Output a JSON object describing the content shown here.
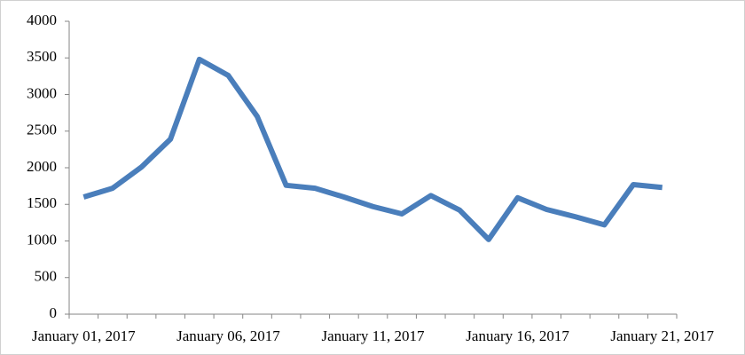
{
  "chart_data": {
    "type": "line",
    "categories": [
      "January 01, 2017",
      null,
      null,
      null,
      null,
      "January 06, 2017",
      null,
      null,
      null,
      null,
      "January 11, 2017",
      null,
      null,
      null,
      null,
      "January 16, 2017",
      null,
      null,
      null,
      null,
      "January 21, 2017"
    ],
    "values": [
      1600,
      1720,
      2010,
      2390,
      3480,
      3260,
      2700,
      1760,
      1720,
      1600,
      1470,
      1370,
      1620,
      1420,
      1020,
      1590,
      1430,
      1330,
      1220,
      1770,
      1730
    ],
    "color": "#4a7ebb",
    "ylim": [
      0,
      4000
    ],
    "yticks": [
      0,
      500,
      1000,
      1500,
      2000,
      2500,
      3000,
      3500,
      4000
    ],
    "grid": false
  }
}
